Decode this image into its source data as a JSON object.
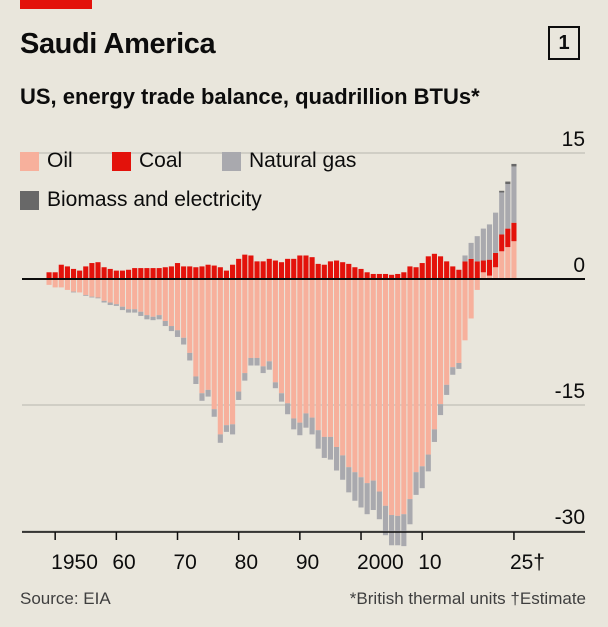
{
  "header": {
    "title": "Saudi America",
    "chart_number": "1",
    "subtitle": "US, energy trade balance, quadrillion BTUs*"
  },
  "footer": {
    "source": "Source: EIA",
    "note": "*British thermal units †Estimate"
  },
  "colors": {
    "background": "#e9e6dc",
    "accent": "#e3120b",
    "oil": "#f7b09c",
    "coal": "#e3120b",
    "natural_gas": "#a9a9ae",
    "biomass_electricity": "#686868",
    "gridline": "#b7b5ae",
    "zero_line": "#0c0c0c"
  },
  "chart_data": {
    "type": "bar",
    "stacked": true,
    "title": "Saudi America",
    "subtitle": "US, energy trade balance, quadrillion BTUs*",
    "xlabel": "",
    "ylabel": "quadrillion BTUs",
    "ylim": [
      -31.5,
      15
    ],
    "y_ticks": [
      15,
      0,
      -15,
      -30
    ],
    "y_tick_labels": [
      "15",
      "0",
      "-15",
      "-30"
    ],
    "x_ticks": [
      1950,
      1960,
      1970,
      1980,
      1990,
      2000,
      2010,
      2025
    ],
    "x_tick_labels": [
      "1950",
      "60",
      "70",
      "80",
      "90",
      "2000",
      "10",
      "25†"
    ],
    "legend": [
      "Oil",
      "Coal",
      "Natural gas",
      "Biomass and electricity"
    ],
    "legend_position": "top-left",
    "grid": true,
    "x": [
      1949,
      1950,
      1951,
      1952,
      1953,
      1954,
      1955,
      1956,
      1957,
      1958,
      1959,
      1960,
      1961,
      1962,
      1963,
      1964,
      1965,
      1966,
      1967,
      1968,
      1969,
      1970,
      1971,
      1972,
      1973,
      1974,
      1975,
      1976,
      1977,
      1978,
      1979,
      1980,
      1981,
      1982,
      1983,
      1984,
      1985,
      1986,
      1987,
      1988,
      1989,
      1990,
      1991,
      1992,
      1993,
      1994,
      1995,
      1996,
      1997,
      1998,
      1999,
      2000,
      2001,
      2002,
      2003,
      2004,
      2005,
      2006,
      2007,
      2008,
      2009,
      2010,
      2011,
      2012,
      2013,
      2014,
      2015,
      2016,
      2017,
      2018,
      2019,
      2020,
      2021,
      2022,
      2023,
      2024,
      2025
    ],
    "series": [
      {
        "name": "Oil",
        "color": "#f7b09c",
        "values": [
          -0.7,
          -1.0,
          -1.0,
          -1.3,
          -1.5,
          -1.6,
          -1.9,
          -2.1,
          -2.2,
          -2.6,
          -2.8,
          -3.0,
          -3.3,
          -3.6,
          -3.6,
          -3.9,
          -4.3,
          -4.5,
          -4.3,
          -5.0,
          -5.6,
          -6.1,
          -7.0,
          -8.8,
          -11.6,
          -13.6,
          -13.2,
          -15.5,
          -18.5,
          -17.4,
          -17.3,
          -13.4,
          -11.2,
          -9.4,
          -9.4,
          -10.4,
          -9.8,
          -12.3,
          -13.6,
          -14.8,
          -16.6,
          -17.1,
          -16.0,
          -16.5,
          -18.0,
          -18.8,
          -18.8,
          -20.0,
          -21.0,
          -22.4,
          -23.0,
          -23.6,
          -24.3,
          -24.0,
          -25.3,
          -27.0,
          -28.1,
          -28.2,
          -28.0,
          -26.2,
          -23.0,
          -22.3,
          -20.9,
          -17.9,
          -14.9,
          -12.6,
          -10.5,
          -10.0,
          -7.3,
          -4.7,
          -1.3,
          0.8,
          0.4,
          1.4,
          3.3,
          3.8,
          4.5
        ]
      },
      {
        "name": "Coal",
        "color": "#e3120b",
        "values": [
          0.8,
          0.8,
          1.7,
          1.5,
          1.2,
          1.0,
          1.5,
          1.9,
          2.0,
          1.4,
          1.2,
          1.0,
          1.0,
          1.1,
          1.3,
          1.3,
          1.3,
          1.3,
          1.3,
          1.4,
          1.5,
          1.9,
          1.5,
          1.5,
          1.4,
          1.5,
          1.7,
          1.6,
          1.4,
          1.0,
          1.7,
          2.4,
          2.9,
          2.8,
          2.1,
          2.1,
          2.4,
          2.2,
          2.0,
          2.4,
          2.4,
          2.8,
          2.8,
          2.6,
          1.8,
          1.7,
          2.1,
          2.2,
          2.0,
          1.8,
          1.4,
          1.2,
          0.8,
          0.6,
          0.6,
          0.6,
          0.5,
          0.6,
          0.8,
          1.5,
          1.4,
          1.9,
          2.7,
          3.0,
          2.7,
          2.1,
          1.5,
          1.1,
          2.1,
          2.4,
          2.1,
          1.4,
          1.9,
          1.7,
          2.0,
          2.2,
          2.2
        ]
      },
      {
        "name": "Natural gas",
        "color": "#a9a9ae",
        "values": [
          0.0,
          0.0,
          0.0,
          0.0,
          -0.1,
          0.0,
          -0.1,
          -0.1,
          -0.1,
          -0.2,
          -0.3,
          -0.2,
          -0.4,
          -0.4,
          -0.4,
          -0.5,
          -0.5,
          -0.4,
          -0.5,
          -0.6,
          -0.6,
          -0.8,
          -0.8,
          -0.9,
          -0.9,
          -0.9,
          -0.8,
          -0.9,
          -1.0,
          -0.8,
          -1.2,
          -1.0,
          -0.9,
          -0.9,
          -0.9,
          -0.8,
          -1.0,
          -0.7,
          -1.0,
          -1.3,
          -1.3,
          -1.5,
          -1.7,
          -2.0,
          -2.2,
          -2.5,
          -2.7,
          -2.8,
          -2.9,
          -3.0,
          -3.4,
          -3.6,
          -3.7,
          -3.5,
          -3.3,
          -3.5,
          -3.6,
          -3.5,
          -3.8,
          -3.0,
          -2.7,
          -2.6,
          -2.0,
          -1.5,
          -1.3,
          -1.2,
          -0.9,
          -0.7,
          0.7,
          1.9,
          3.0,
          3.8,
          4.2,
          4.8,
          5.0,
          5.3,
          6.7
        ]
      },
      {
        "name": "Biomass and electricity",
        "color": "#686868",
        "values": [
          0,
          0,
          0,
          0,
          0,
          0,
          0,
          0,
          0,
          0,
          0,
          0,
          0,
          0,
          0,
          0,
          0,
          0,
          0,
          0,
          0,
          0,
          0,
          0,
          0,
          0,
          0,
          0,
          0,
          0,
          0,
          0,
          0,
          0,
          0,
          0,
          0,
          0,
          0,
          0,
          0,
          0,
          0,
          0,
          0,
          0,
          0,
          0,
          0,
          0,
          0,
          0,
          0,
          0,
          0,
          0,
          0,
          0,
          0,
          0,
          0,
          0,
          0,
          0,
          0,
          0,
          0,
          0,
          0,
          0,
          0,
          0,
          0,
          0,
          0.2,
          0.3,
          0.3
        ]
      }
    ]
  }
}
